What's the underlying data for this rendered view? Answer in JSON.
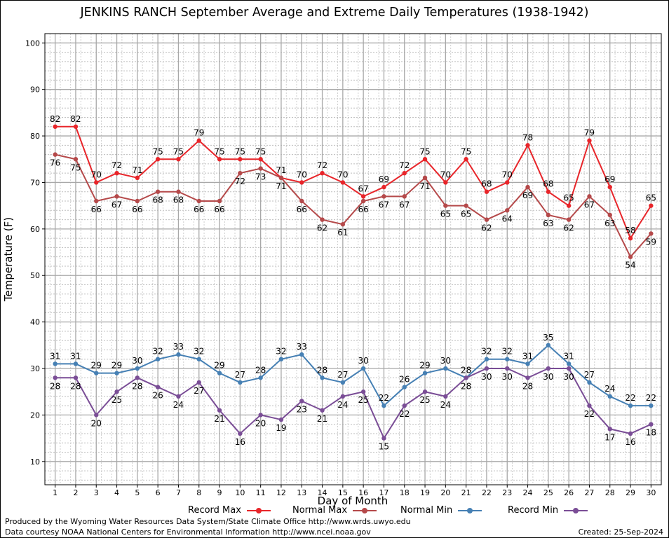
{
  "chart_data": {
    "type": "line",
    "title": "JENKINS RANCH September Average and Extreme Daily Temperatures (1938-1942)",
    "xlabel": "Day of Month",
    "ylabel": "Temperature (F)",
    "x": [
      1,
      2,
      3,
      4,
      5,
      6,
      7,
      8,
      9,
      10,
      11,
      12,
      13,
      14,
      15,
      16,
      17,
      18,
      19,
      20,
      21,
      22,
      23,
      24,
      25,
      26,
      27,
      28,
      29,
      30
    ],
    "ylim": [
      5,
      102
    ],
    "yticks": [
      10,
      20,
      30,
      40,
      50,
      60,
      70,
      80,
      90,
      100
    ],
    "grid": true,
    "legend_position": "bottom",
    "series": [
      {
        "name": "Record Max",
        "color": "#e8252a",
        "label_pos": "above",
        "values": [
          82,
          82,
          70,
          72,
          71,
          75,
          75,
          79,
          75,
          75,
          75,
          71,
          70,
          72,
          70,
          67,
          69,
          72,
          75,
          70,
          75,
          68,
          70,
          78,
          68,
          65,
          79,
          69,
          58,
          65
        ]
      },
      {
        "name": "Normal Max",
        "color": "#b5494a",
        "label_pos": "below",
        "values": [
          76,
          75,
          66,
          67,
          66,
          68,
          68,
          66,
          66,
          72,
          73,
          71,
          66,
          62,
          61,
          66,
          67,
          67,
          71,
          65,
          65,
          62,
          64,
          69,
          63,
          62,
          67,
          63,
          54,
          59
        ]
      },
      {
        "name": "Normal Min",
        "color": "#4680b4",
        "label_pos": "above",
        "values": [
          31,
          31,
          29,
          29,
          30,
          32,
          33,
          32,
          29,
          27,
          28,
          32,
          33,
          28,
          27,
          30,
          22,
          26,
          29,
          30,
          28,
          32,
          32,
          31,
          35,
          31,
          27,
          24,
          22,
          22
        ]
      },
      {
        "name": "Record Min",
        "color": "#7a4d96",
        "label_pos": "below",
        "values": [
          28,
          28,
          20,
          25,
          28,
          26,
          24,
          27,
          21,
          16,
          20,
          19,
          23,
          21,
          24,
          25,
          15,
          22,
          25,
          24,
          28,
          30,
          30,
          28,
          30,
          30,
          22,
          17,
          16,
          18
        ]
      }
    ]
  },
  "footer": {
    "produced_by": "Produced by the Wyoming Water Resources Data System/State Climate Office http://www.wrds.uwyo.edu",
    "courtesy": "Data courtesy NOAA National Centers for Environmental Information http://www.ncei.noaa.gov",
    "created": "Created: 25-Sep-2024"
  }
}
